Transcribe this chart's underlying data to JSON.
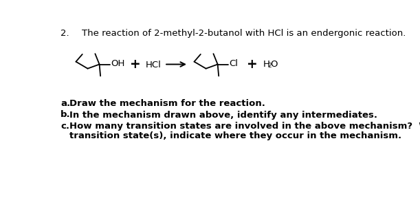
{
  "title_num": "2.",
  "title_text": "The reaction of 2-methyl-2-butanol with HCl is an endergonic reaction.",
  "qa": "a.   Draw the mechanism for the reaction.",
  "qb": "b.   In the mechanism drawn above, identify any intermediates.",
  "qc1": "c.   How many transition states are involved in the above mechanism?  Without drawing the",
  "qc2": "      transition state(s), indicate where they occur in the mechanism.",
  "bg_color": "#ffffff",
  "text_color": "#000000",
  "fontsize": 9.5,
  "lw": 1.3
}
